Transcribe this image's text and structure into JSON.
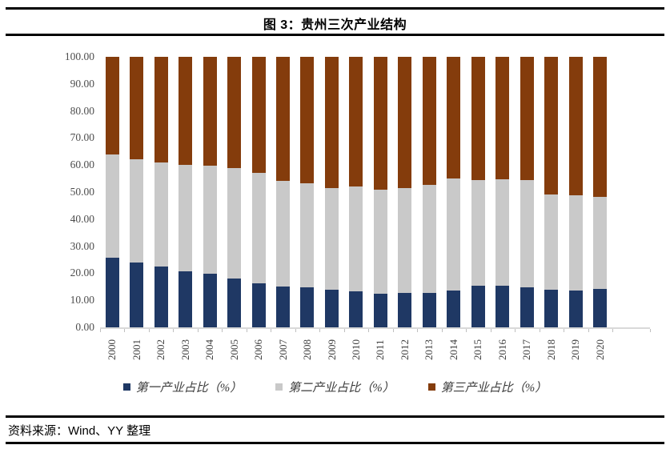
{
  "header": {
    "title": "图 3：贵州三次产业结构"
  },
  "footer": {
    "source": "资料来源：Wind、YY 整理"
  },
  "chart_data": {
    "type": "bar",
    "stacked": true,
    "title": "图 3：贵州三次产业结构",
    "xlabel": "",
    "ylabel": "",
    "ylim": [
      0,
      100
    ],
    "grid": false,
    "legend_position": "bottom",
    "y_ticks": [
      "100.00",
      "90.00",
      "80.00",
      "70.00",
      "60.00",
      "50.00",
      "40.00",
      "30.00",
      "20.00",
      "10.00",
      "0.00"
    ],
    "categories": [
      "2000",
      "2001",
      "2002",
      "2003",
      "2004",
      "2005",
      "2006",
      "2007",
      "2008",
      "2009",
      "2010",
      "2011",
      "2012",
      "2013",
      "2014",
      "2015",
      "2016",
      "2017",
      "2018",
      "2019",
      "2020"
    ],
    "series": [
      {
        "name": "第一产业占比（%）",
        "color": "#1F3864",
        "values": [
          25.7,
          23.9,
          22.4,
          20.6,
          19.7,
          18.1,
          16.2,
          15.0,
          14.7,
          13.8,
          13.2,
          12.5,
          12.8,
          12.7,
          13.7,
          15.3,
          15.5,
          14.7,
          13.8,
          13.5,
          14.1
        ]
      },
      {
        "name": "第二产业占比（%）",
        "color": "#C9C9C9",
        "values": [
          38.1,
          38.1,
          38.5,
          39.6,
          40.2,
          40.8,
          40.9,
          39.2,
          38.5,
          37.6,
          38.9,
          38.5,
          38.7,
          40.0,
          41.2,
          39.1,
          39.1,
          39.7,
          35.4,
          35.4,
          34.2
        ]
      },
      {
        "name": "第三产业占比（%）",
        "color": "#843C0C",
        "values": [
          36.2,
          38.0,
          39.1,
          39.8,
          40.1,
          41.1,
          42.9,
          45.8,
          46.8,
          48.6,
          47.9,
          49.0,
          48.5,
          47.3,
          45.1,
          45.6,
          45.4,
          45.6,
          50.8,
          51.1,
          51.7
        ]
      }
    ],
    "colors": {
      "axis_line": "#d9d9d9",
      "tick": "#bfbfbf",
      "tick_label": "#4d4d4d",
      "rule": "#000000"
    }
  }
}
